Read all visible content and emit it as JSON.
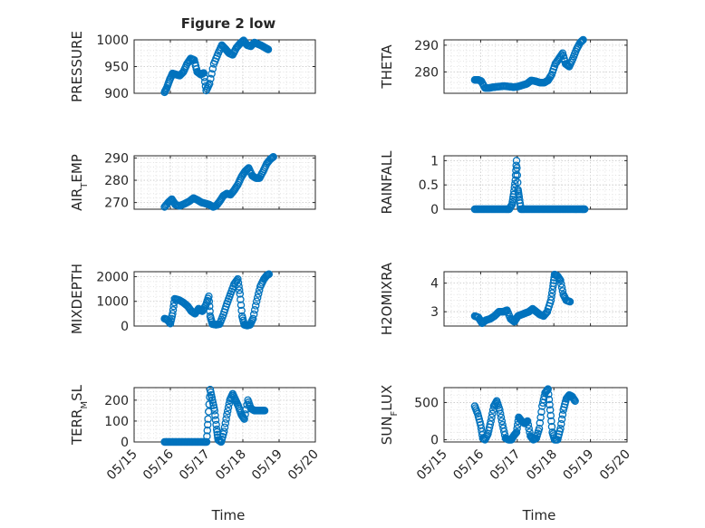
{
  "figure": {
    "title": "Figure 2 low",
    "xlabel": "Time",
    "marker_color": "#0072BD",
    "background": "#ffffff",
    "axes_color": "#262626",
    "grid": "dotted-major-and-minor"
  },
  "chart_data": [
    {
      "type": "scatter",
      "ylabel": "PRESSURE",
      "ylim": [
        900,
        1000
      ],
      "yticks": [
        900,
        950,
        1000
      ],
      "ytick_labels": [
        "900",
        "950",
        "1000"
      ],
      "xlim": [
        "05/15",
        "05/20"
      ],
      "xtick_labels": [
        "05/15",
        "05/16",
        "05/17",
        "05/18",
        "05/19",
        "05/20"
      ],
      "points": [
        [
          15.84,
          902
        ],
        [
          15.9,
          910
        ],
        [
          15.98,
          925
        ],
        [
          16.06,
          937
        ],
        [
          16.16,
          935
        ],
        [
          16.26,
          933
        ],
        [
          16.36,
          940
        ],
        [
          16.46,
          955
        ],
        [
          16.56,
          965
        ],
        [
          16.66,
          962
        ],
        [
          16.74,
          940
        ],
        [
          16.84,
          935
        ],
        [
          16.92,
          938
        ],
        [
          16.99,
          905
        ],
        [
          17.08,
          918
        ],
        [
          17.2,
          955
        ],
        [
          17.32,
          975
        ],
        [
          17.42,
          990
        ],
        [
          17.52,
          983
        ],
        [
          17.62,
          975
        ],
        [
          17.72,
          972
        ],
        [
          17.82,
          985
        ],
        [
          17.92,
          993
        ],
        [
          18.02,
          999
        ],
        [
          18.12,
          990
        ],
        [
          18.22,
          988
        ],
        [
          18.32,
          995
        ],
        [
          18.42,
          992
        ],
        [
          18.52,
          989
        ],
        [
          18.62,
          985
        ],
        [
          18.7,
          982
        ]
      ]
    },
    {
      "type": "scatter",
      "ylabel": "THETA",
      "ylim": [
        272,
        292
      ],
      "yticks": [
        280,
        290
      ],
      "ytick_labels": [
        "280",
        "290"
      ],
      "xlim": [
        "05/15",
        "05/20"
      ],
      "xtick_labels": [
        "05/15",
        "05/16",
        "05/17",
        "05/18",
        "05/19",
        "05/20"
      ],
      "points": [
        [
          15.84,
          277
        ],
        [
          15.94,
          277
        ],
        [
          16.02,
          276.5
        ],
        [
          16.12,
          274
        ],
        [
          16.24,
          274
        ],
        [
          16.36,
          274.3
        ],
        [
          16.5,
          274.5
        ],
        [
          16.64,
          274.7
        ],
        [
          16.78,
          274.5
        ],
        [
          16.9,
          274.3
        ],
        [
          17.02,
          274.5
        ],
        [
          17.14,
          275
        ],
        [
          17.26,
          275.5
        ],
        [
          17.38,
          276.8
        ],
        [
          17.5,
          276.5
        ],
        [
          17.62,
          276
        ],
        [
          17.74,
          276
        ],
        [
          17.84,
          276.8
        ],
        [
          17.94,
          279
        ],
        [
          18.04,
          283
        ],
        [
          18.14,
          285
        ],
        [
          18.24,
          287
        ],
        [
          18.32,
          283
        ],
        [
          18.42,
          282
        ],
        [
          18.52,
          285
        ],
        [
          18.62,
          288.5
        ],
        [
          18.72,
          291
        ],
        [
          18.8,
          292
        ]
      ]
    },
    {
      "type": "scatter",
      "ylabel": "AIR_TEMP",
      "ylim": [
        267,
        291
      ],
      "yticks": [
        270,
        280,
        290
      ],
      "ytick_labels": [
        "270",
        "280",
        "290"
      ],
      "xlim": [
        "05/15",
        "05/20"
      ],
      "xtick_labels": [
        "05/15",
        "05/16",
        "05/17",
        "05/18",
        "05/19",
        "05/20"
      ],
      "points": [
        [
          15.84,
          268
        ],
        [
          15.94,
          270
        ],
        [
          16.04,
          271.5
        ],
        [
          16.14,
          269
        ],
        [
          16.26,
          268.5
        ],
        [
          16.4,
          269.5
        ],
        [
          16.52,
          270.5
        ],
        [
          16.64,
          272
        ],
        [
          16.76,
          271
        ],
        [
          16.86,
          270
        ],
        [
          16.98,
          269.5
        ],
        [
          17.08,
          269
        ],
        [
          17.18,
          268
        ],
        [
          17.26,
          268.5
        ],
        [
          17.36,
          270.5
        ],
        [
          17.46,
          273
        ],
        [
          17.56,
          274
        ],
        [
          17.66,
          273.5
        ],
        [
          17.76,
          275.5
        ],
        [
          17.86,
          278
        ],
        [
          17.96,
          281.5
        ],
        [
          18.06,
          284
        ],
        [
          18.16,
          285.5
        ],
        [
          18.26,
          282
        ],
        [
          18.36,
          281
        ],
        [
          18.46,
          281
        ],
        [
          18.56,
          284
        ],
        [
          18.66,
          287.5
        ],
        [
          18.76,
          289.5
        ],
        [
          18.84,
          290.5
        ]
      ]
    },
    {
      "type": "scatter",
      "ylabel": "RAINFALL",
      "ylim": [
        0,
        1.1
      ],
      "yticks": [
        0,
        0.5,
        1
      ],
      "ytick_labels": [
        "0",
        "0.5",
        "1"
      ],
      "xlim": [
        "05/15",
        "05/20"
      ],
      "xtick_labels": [
        "05/15",
        "05/16",
        "05/17",
        "05/18",
        "05/19",
        "05/20"
      ],
      "points": [
        [
          15.84,
          0
        ],
        [
          15.96,
          0
        ],
        [
          16.08,
          0
        ],
        [
          16.2,
          0
        ],
        [
          16.32,
          0
        ],
        [
          16.44,
          0
        ],
        [
          16.56,
          0
        ],
        [
          16.68,
          0
        ],
        [
          16.78,
          0
        ],
        [
          16.86,
          0.1
        ],
        [
          16.9,
          0.3
        ],
        [
          16.95,
          0.6
        ],
        [
          16.98,
          1.0
        ],
        [
          17.02,
          0.4
        ],
        [
          17.05,
          0.25
        ],
        [
          17.1,
          0
        ],
        [
          17.2,
          0
        ],
        [
          17.32,
          0
        ],
        [
          17.44,
          0
        ],
        [
          17.56,
          0
        ],
        [
          17.68,
          0
        ],
        [
          17.8,
          0
        ],
        [
          17.92,
          0
        ],
        [
          18.04,
          0
        ],
        [
          18.16,
          0
        ],
        [
          18.28,
          0
        ],
        [
          18.4,
          0
        ],
        [
          18.52,
          0
        ],
        [
          18.64,
          0
        ],
        [
          18.76,
          0
        ],
        [
          18.84,
          0
        ]
      ]
    },
    {
      "type": "scatter",
      "ylabel": "MIXDEPTH",
      "ylim": [
        0,
        2200
      ],
      "yticks": [
        0,
        1000,
        2000
      ],
      "ytick_labels": [
        "0",
        "1000",
        "2000"
      ],
      "xlim": [
        "05/15",
        "05/20"
      ],
      "xtick_labels": [
        "05/15",
        "05/16",
        "05/17",
        "05/18",
        "05/19",
        "05/20"
      ],
      "points": [
        [
          15.84,
          300
        ],
        [
          15.92,
          250
        ],
        [
          16.0,
          100
        ],
        [
          16.06,
          500
        ],
        [
          16.12,
          1100
        ],
        [
          16.24,
          1050
        ],
        [
          16.36,
          950
        ],
        [
          16.48,
          800
        ],
        [
          16.58,
          600
        ],
        [
          16.68,
          500
        ],
        [
          16.78,
          700
        ],
        [
          16.88,
          600
        ],
        [
          16.98,
          850
        ],
        [
          17.06,
          1200
        ],
        [
          17.1,
          400
        ],
        [
          17.16,
          80
        ],
        [
          17.26,
          50
        ],
        [
          17.36,
          80
        ],
        [
          17.46,
          450
        ],
        [
          17.56,
          900
        ],
        [
          17.66,
          1300
        ],
        [
          17.76,
          1700
        ],
        [
          17.86,
          1900
        ],
        [
          17.92,
          1300
        ],
        [
          17.98,
          400
        ],
        [
          18.04,
          50
        ],
        [
          18.12,
          20
        ],
        [
          18.2,
          50
        ],
        [
          18.28,
          300
        ],
        [
          18.38,
          1000
        ],
        [
          18.48,
          1600
        ],
        [
          18.58,
          1900
        ],
        [
          18.66,
          2050
        ],
        [
          18.72,
          2100
        ]
      ]
    },
    {
      "type": "scatter",
      "ylabel": "H2OMIXRA",
      "ylim": [
        2.5,
        4.4
      ],
      "yticks": [
        3,
        4
      ],
      "ytick_labels": [
        "3",
        "4"
      ],
      "xlim": [
        "05/15",
        "05/20"
      ],
      "xtick_labels": [
        "05/15",
        "05/16",
        "05/17",
        "05/18",
        "05/19",
        "05/20"
      ],
      "points": [
        [
          15.84,
          2.85
        ],
        [
          15.94,
          2.8
        ],
        [
          16.04,
          2.6
        ],
        [
          16.14,
          2.7
        ],
        [
          16.26,
          2.75
        ],
        [
          16.38,
          2.85
        ],
        [
          16.5,
          3.0
        ],
        [
          16.62,
          3.0
        ],
        [
          16.72,
          3.05
        ],
        [
          16.82,
          2.75
        ],
        [
          16.92,
          2.65
        ],
        [
          17.02,
          2.85
        ],
        [
          17.12,
          2.9
        ],
        [
          17.22,
          2.95
        ],
        [
          17.32,
          3.0
        ],
        [
          17.42,
          3.1
        ],
        [
          17.52,
          3.0
        ],
        [
          17.62,
          2.9
        ],
        [
          17.72,
          2.85
        ],
        [
          17.82,
          3.0
        ],
        [
          17.92,
          3.4
        ],
        [
          17.98,
          3.9
        ],
        [
          18.02,
          4.3
        ],
        [
          18.1,
          4.25
        ],
        [
          18.18,
          4.1
        ],
        [
          18.26,
          3.6
        ],
        [
          18.34,
          3.4
        ],
        [
          18.44,
          3.35
        ]
      ]
    },
    {
      "type": "scatter",
      "ylabel": "TERR_MSL",
      "ylim": [
        0,
        260
      ],
      "yticks": [
        0,
        100,
        200
      ],
      "ytick_labels": [
        "0",
        "100",
        "200"
      ],
      "xlim": [
        "05/15",
        "05/20"
      ],
      "xtick_labels": [
        "05/15",
        "05/16",
        "05/17",
        "05/18",
        "05/19",
        "05/20"
      ],
      "points": [
        [
          15.84,
          0
        ],
        [
          15.96,
          0
        ],
        [
          16.08,
          0
        ],
        [
          16.2,
          0
        ],
        [
          16.32,
          0
        ],
        [
          16.44,
          0
        ],
        [
          16.56,
          0
        ],
        [
          16.68,
          0
        ],
        [
          16.8,
          0
        ],
        [
          16.92,
          0
        ],
        [
          17.0,
          0
        ],
        [
          17.04,
          110
        ],
        [
          17.1,
          250
        ],
        [
          17.16,
          200
        ],
        [
          17.22,
          150
        ],
        [
          17.28,
          60
        ],
        [
          17.32,
          10
        ],
        [
          17.4,
          0
        ],
        [
          17.48,
          50
        ],
        [
          17.56,
          130
        ],
        [
          17.64,
          200
        ],
        [
          17.72,
          230
        ],
        [
          17.8,
          200
        ],
        [
          17.88,
          170
        ],
        [
          17.96,
          130
        ],
        [
          18.04,
          110
        ],
        [
          18.14,
          200
        ],
        [
          18.22,
          160
        ],
        [
          18.32,
          150
        ],
        [
          18.42,
          150
        ],
        [
          18.52,
          150
        ],
        [
          18.6,
          150
        ]
      ]
    },
    {
      "type": "scatter",
      "ylabel": "SUN_FLUX",
      "ylim": [
        -30,
        700
      ],
      "yticks": [
        0,
        500
      ],
      "ytick_labels": [
        "0",
        "500"
      ],
      "xlim": [
        "05/15",
        "05/20"
      ],
      "xtick_labels": [
        "05/15",
        "05/16",
        "05/17",
        "05/18",
        "05/19",
        "05/20"
      ],
      "points": [
        [
          15.84,
          450
        ],
        [
          15.92,
          350
        ],
        [
          16.0,
          200
        ],
        [
          16.06,
          20
        ],
        [
          16.12,
          0
        ],
        [
          16.2,
          80
        ],
        [
          16.28,
          250
        ],
        [
          16.36,
          450
        ],
        [
          16.44,
          520
        ],
        [
          16.52,
          400
        ],
        [
          16.6,
          200
        ],
        [
          16.68,
          20
        ],
        [
          16.76,
          0
        ],
        [
          16.84,
          0
        ],
        [
          16.9,
          50
        ],
        [
          16.98,
          100
        ],
        [
          17.04,
          300
        ],
        [
          17.12,
          250
        ],
        [
          17.2,
          220
        ],
        [
          17.28,
          250
        ],
        [
          17.36,
          50
        ],
        [
          17.44,
          0
        ],
        [
          17.52,
          20
        ],
        [
          17.6,
          150
        ],
        [
          17.68,
          450
        ],
        [
          17.76,
          630
        ],
        [
          17.84,
          680
        ],
        [
          17.9,
          400
        ],
        [
          17.96,
          100
        ],
        [
          18.02,
          0
        ],
        [
          18.1,
          0
        ],
        [
          18.18,
          150
        ],
        [
          18.26,
          400
        ],
        [
          18.34,
          550
        ],
        [
          18.42,
          600
        ],
        [
          18.5,
          580
        ],
        [
          18.58,
          520
        ]
      ]
    }
  ]
}
